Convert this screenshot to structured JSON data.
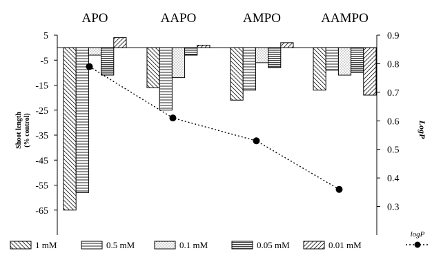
{
  "chart_data": {
    "type": "bar",
    "categories": [
      "APO",
      "AAPO",
      "AMPO",
      "AAMPO"
    ],
    "series": [
      {
        "name": "1 mM",
        "values": [
          -65,
          -16,
          -21,
          -17
        ]
      },
      {
        "name": "0.5 mM",
        "values": [
          -58,
          -25,
          -17,
          -9
        ]
      },
      {
        "name": "0.1 mM",
        "values": [
          -3,
          -12,
          -6,
          -11
        ]
      },
      {
        "name": "0.05 mM",
        "values": [
          -11,
          -3,
          -8,
          -10
        ]
      },
      {
        "name": "0.01 mM",
        "values": [
          4,
          1,
          2,
          -19
        ]
      }
    ],
    "line": {
      "name": "logP",
      "values": [
        0.79,
        0.61,
        0.53,
        0.36
      ]
    },
    "ylabel": "Shoot length",
    "ylabel_sub": "(% control)",
    "y2label": "LogP",
    "ylim": [
      -75,
      5
    ],
    "y2lim": [
      0.2,
      0.9
    ],
    "yticks": [
      "5",
      "-5",
      "-15",
      "-25",
      "-35",
      "-45",
      "-55",
      "-65"
    ],
    "y2ticks": [
      "0.9",
      "0.8",
      "0.7",
      "0.6",
      "0.5",
      "0.4",
      "0.3"
    ],
    "legend_position": "bottom",
    "grid": false
  }
}
